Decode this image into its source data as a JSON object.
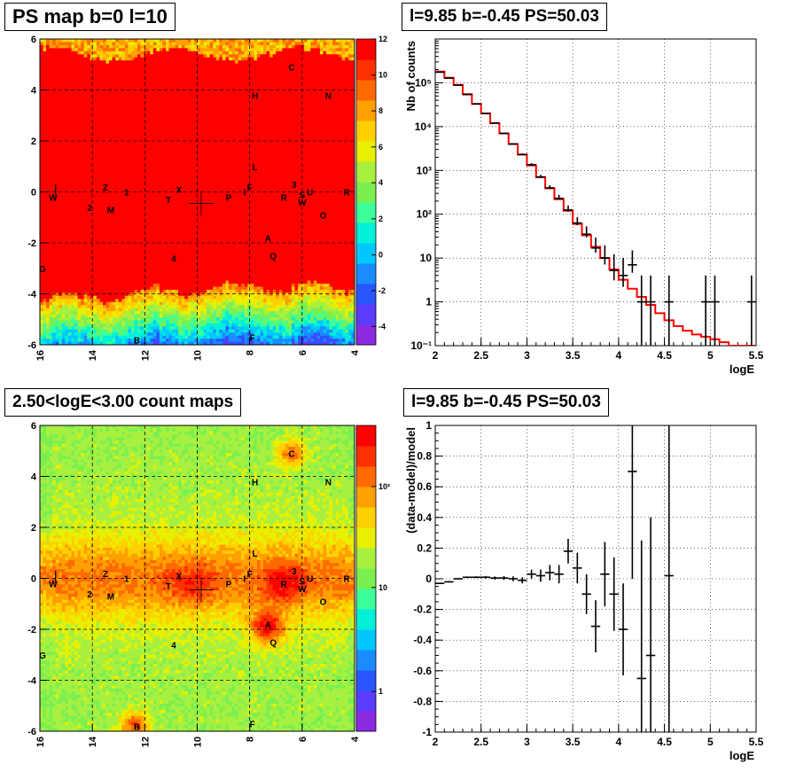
{
  "titles": {
    "ps_map": "PS map b=0 l=10",
    "spectrum": "l=9.85 b=-0.45 PS=50.03",
    "count_map": "2.50<logE<3.00 count maps",
    "residual": "l=9.85 b=-0.45 PS=50.03"
  },
  "colors": {
    "model_line": "#ff0000",
    "data": "#000000",
    "palette": [
      "#8a2be2",
      "#5a3cff",
      "#2a55ff",
      "#1a8cff",
      "#00c8ff",
      "#00f0d8",
      "#3cff9a",
      "#7af050",
      "#a8f040",
      "#e8f000",
      "#ffd000",
      "#ffa000",
      "#ff6a00",
      "#ff3000",
      "#ff0000"
    ]
  },
  "markers": [
    {
      "label": "C",
      "l": 6.4,
      "b": 4.9
    },
    {
      "label": "H",
      "l": 7.8,
      "b": 3.8
    },
    {
      "label": "N",
      "l": 5.0,
      "b": 3.8
    },
    {
      "label": "L",
      "l": 7.8,
      "b": 1.0
    },
    {
      "label": "F",
      "l": 8.0,
      "b": 0.2
    },
    {
      "label": "I",
      "l": 8.2,
      "b": 0.0
    },
    {
      "label": "3",
      "l": 6.3,
      "b": 0.3
    },
    {
      "label": "S",
      "l": 6.0,
      "b": -0.1
    },
    {
      "label": "U",
      "l": 5.7,
      "b": 0.0
    },
    {
      "label": "R",
      "l": 4.3,
      "b": 0.0
    },
    {
      "label": "R",
      "l": 6.7,
      "b": -0.2
    },
    {
      "label": "W",
      "l": 6.0,
      "b": -0.4
    },
    {
      "label": "O",
      "l": 5.2,
      "b": -0.9
    },
    {
      "label": "P",
      "l": 8.8,
      "b": -0.2
    },
    {
      "label": "X",
      "l": 10.7,
      "b": 0.1
    },
    {
      "label": "T",
      "l": 11.1,
      "b": -0.3
    },
    {
      "label": "Z",
      "l": 13.5,
      "b": 0.2
    },
    {
      "label": "1",
      "l": 12.7,
      "b": 0.0
    },
    {
      "label": "M",
      "l": 13.3,
      "b": -0.7
    },
    {
      "label": "2",
      "l": 14.1,
      "b": -0.6
    },
    {
      "label": "W",
      "l": 15.5,
      "b": -0.2
    },
    {
      "label": "A",
      "l": 7.3,
      "b": -1.8
    },
    {
      "label": "Q",
      "l": 7.1,
      "b": -2.5
    },
    {
      "label": "4",
      "l": 10.9,
      "b": -2.6
    },
    {
      "label": "G",
      "l": 15.9,
      "b": -3.0
    },
    {
      "label": "B",
      "l": 12.3,
      "b": -5.8
    },
    {
      "label": "F",
      "l": 7.9,
      "b": -5.7
    }
  ],
  "ps_map": {
    "xticks": [
      "16",
      "14",
      "12",
      "10",
      "8",
      "6",
      "4"
    ],
    "yticks": [
      "6",
      "4",
      "2",
      "0",
      "-2",
      "-4",
      "-6"
    ],
    "zticks": [
      "12",
      "10",
      "8",
      "6",
      "4",
      "2",
      "0",
      "-2",
      "-4"
    ]
  },
  "count_map": {
    "xticks": [
      "16",
      "14",
      "12",
      "10",
      "8",
      "6",
      "4"
    ],
    "yticks": [
      "6",
      "4",
      "2",
      "0",
      "-2",
      "-4",
      "-6"
    ],
    "zticks": [
      "10²",
      "10",
      "1"
    ]
  },
  "chart_data": [
    {
      "type": "line",
      "title": "l=9.85 b=-0.45 PS=50.03",
      "xlabel": "logE",
      "ylabel": "Nb of counts",
      "xlim": [
        2,
        5.5
      ],
      "ylim": [
        0.1,
        1000000
      ],
      "yscale": "log",
      "grid": true,
      "xticks": [
        "2",
        "2.5",
        "3",
        "3.5",
        "4",
        "4.5",
        "5",
        "5.5"
      ],
      "yticks": [
        "10⁻¹",
        "1",
        "10",
        "10²",
        "10³",
        "10⁴",
        "10⁵"
      ],
      "series": [
        {
          "kind": "model_histogram",
          "bin_edges": [
            2.0,
            2.1,
            2.2,
            2.3,
            2.4,
            2.5,
            2.6,
            2.7,
            2.8,
            2.9,
            3.0,
            3.1,
            3.2,
            3.3,
            3.4,
            3.5,
            3.6,
            3.7,
            3.8,
            3.9,
            4.0,
            4.1,
            4.2,
            4.3,
            4.4,
            4.5,
            4.6,
            4.7,
            4.8,
            4.9,
            5.0,
            5.1,
            5.2,
            5.3,
            5.4,
            5.5
          ],
          "values": [
            180000,
            130000,
            90000,
            55000,
            33000,
            20000,
            12000,
            7000,
            4000,
            2300,
            1300,
            700,
            390,
            220,
            120,
            60,
            33,
            18,
            10,
            5.5,
            3.2,
            2.0,
            1.3,
            0.85,
            0.55,
            0.38,
            0.28,
            0.22,
            0.18,
            0.16,
            0.14,
            0.12,
            0.1,
            0.1,
            0.1
          ]
        },
        {
          "kind": "data_points",
          "x": [
            2.05,
            2.15,
            2.25,
            2.35,
            2.45,
            2.55,
            2.65,
            2.75,
            2.85,
            2.95,
            3.05,
            3.15,
            3.25,
            3.35,
            3.45,
            3.55,
            3.65,
            3.75,
            3.85,
            3.95,
            4.05,
            4.15,
            4.25,
            4.35,
            4.55,
            4.95,
            5.05,
            5.45
          ],
          "y": [
            175000,
            128000,
            88000,
            54000,
            33000,
            20000,
            12000,
            7000,
            4000,
            2300,
            1350,
            710,
            400,
            230,
            125,
            63,
            35,
            17,
            10,
            5.2,
            4,
            7,
            1,
            1,
            1,
            1,
            1,
            1
          ],
          "yerr_rel": [
            0.003,
            0.003,
            0.004,
            0.005,
            0.006,
            0.008,
            0.01,
            0.012,
            0.016,
            0.02,
            0.03,
            0.04,
            0.05,
            0.07,
            0.09,
            0.12,
            0.17,
            0.24,
            0.32,
            0.45,
            0.5,
            0.38,
            1,
            1,
            1,
            1,
            1,
            1
          ]
        }
      ]
    },
    {
      "type": "scatter",
      "title": "l=9.85 b=-0.45 PS=50.03",
      "xlabel": "logE",
      "ylabel": "(data-model)/model",
      "xlim": [
        2,
        5.5
      ],
      "ylim": [
        -1,
        1
      ],
      "grid": true,
      "xticks": [
        "2",
        "2.5",
        "3",
        "3.5",
        "4",
        "4.5",
        "5",
        "5.5"
      ],
      "yticks": [
        "-1",
        "-0.8",
        "-0.6",
        "-0.4",
        "-0.2",
        "0",
        "0.2",
        "0.4",
        "0.6",
        "0.8",
        "1"
      ],
      "series": [
        {
          "kind": "residual_points",
          "x": [
            2.05,
            2.15,
            2.25,
            2.35,
            2.45,
            2.55,
            2.65,
            2.75,
            2.85,
            2.95,
            3.05,
            3.15,
            3.25,
            3.35,
            3.45,
            3.55,
            3.65,
            3.75,
            3.85,
            3.95,
            4.05,
            4.15,
            4.25,
            4.35,
            4.55
          ],
          "y": [
            -0.03,
            -0.02,
            0.0,
            0.01,
            0.01,
            0.01,
            0.005,
            0.005,
            0.0,
            -0.01,
            0.03,
            0.02,
            0.04,
            0.03,
            0.18,
            0.07,
            -0.1,
            -0.31,
            0.03,
            -0.1,
            -0.33,
            0.7,
            -0.65,
            -0.5,
            0.02
          ],
          "yerr": [
            0.004,
            0.004,
            0.004,
            0.005,
            0.006,
            0.008,
            0.01,
            0.012,
            0.016,
            0.02,
            0.03,
            0.04,
            0.05,
            0.06,
            0.08,
            0.1,
            0.13,
            0.17,
            0.21,
            0.24,
            0.3,
            0.7,
            0.9,
            0.9,
            1.2
          ]
        }
      ]
    }
  ]
}
